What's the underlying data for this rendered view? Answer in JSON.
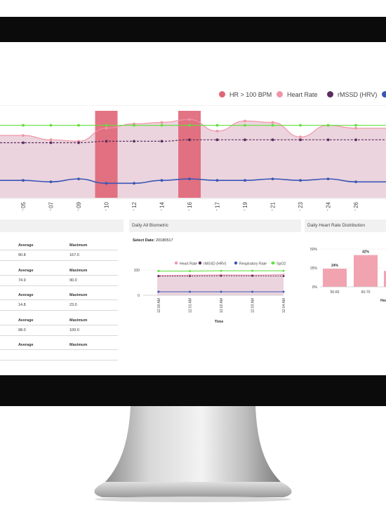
{
  "colors": {
    "hr_over_100": "#e06577",
    "heart_rate": "#f095a6",
    "rmssd": "#5a2d5e",
    "respiratory": "#3a56b5",
    "spo2": "#5fe03a",
    "area_fill": "#e8cdd8",
    "bezel": "#0b0b0b",
    "panel_header": "#f1f1f1"
  },
  "main_legend": [
    {
      "label": "HR > 100 BPM",
      "color": "#e06577"
    },
    {
      "label": "Heart Rate",
      "color": "#f095a6"
    },
    {
      "label": "rMSSD (HRV)",
      "color": "#5a2d5e"
    }
  ],
  "chart_data": [
    {
      "type": "line",
      "categories": [
        "May 05",
        "May 07",
        "May 09",
        "May 10",
        "May 12",
        "May 14",
        "May 16",
        "May 17",
        "May 19",
        "May 21",
        "May 23",
        "May 24",
        "May 26"
      ],
      "series": [
        {
          "name": "Heart Rate",
          "values": [
            83,
            80,
            79,
            88,
            91,
            92,
            94,
            86,
            93,
            92,
            82,
            90,
            88
          ]
        },
        {
          "name": "rMSSD (HRV)",
          "values": [
            78,
            78,
            78,
            79,
            79,
            79,
            80,
            80,
            80,
            80,
            80,
            80,
            80
          ]
        },
        {
          "name": "SpO2",
          "values": [
            90,
            90,
            90,
            90,
            90,
            90,
            90,
            90,
            90,
            90,
            90,
            90,
            90
          ]
        },
        {
          "name": "Respiratory Rate",
          "values": [
            52,
            51,
            53,
            50,
            50,
            52,
            53,
            52,
            52,
            53,
            52,
            53,
            51
          ]
        }
      ],
      "bars": [
        {
          "name": "HR > 100 BPM",
          "category": "May 10",
          "value": 100
        },
        {
          "name": "HR > 100 BPM",
          "category": "May 16",
          "value": 100
        }
      ],
      "ylim": [
        40,
        100
      ]
    },
    {
      "type": "line",
      "title": "Daily All Biometric",
      "categories": [
        "12:00 AM",
        "12:01 AM",
        "12:02 AM",
        "12:03 AM",
        "12:04 AM"
      ],
      "series": [
        {
          "name": "Heart Rate",
          "values": [
            78,
            80,
            81,
            80,
            82
          ]
        },
        {
          "name": "rMSSD (HRV)",
          "values": [
            76,
            76,
            77,
            77,
            76
          ]
        },
        {
          "name": "Respiratory Rate",
          "values": [
            14,
            14,
            14,
            14,
            14
          ]
        },
        {
          "name": "SpO2",
          "values": [
            96,
            96,
            97,
            97,
            97
          ]
        }
      ],
      "yticks": [
        "100",
        "0"
      ],
      "xlabel": "Time",
      "ylim": [
        0,
        100
      ]
    },
    {
      "type": "bar",
      "title": "Daily Heart Rate Distribution",
      "categories": [
        "50-60",
        "60-70",
        ""
      ],
      "values": [
        24,
        42,
        21
      ],
      "data_labels": [
        "24%",
        "42%",
        ""
      ],
      "yticks": [
        "50%",
        "25%",
        "0%"
      ],
      "xlabel": "Hea",
      "ylim": [
        0,
        50
      ]
    }
  ],
  "daily_biometric": {
    "title": "Daily All Biometric",
    "select_date_label": "Select Date:",
    "select_date_value": "20180517",
    "legend": [
      "Heart Rate",
      "rMSSD (HRV)",
      "Respiratory Rate",
      "SpO2"
    ]
  },
  "distribution": {
    "title": "Daily Heart Rate Distribution"
  },
  "stats_table": {
    "groups": [
      {
        "h1": "Average",
        "h2": "Maximum",
        "v1": "90.8",
        "v2": "167.0"
      },
      {
        "h1": "Average",
        "h2": "Maximum",
        "v1": "74.9",
        "v2": "90.0"
      },
      {
        "h1": "Average",
        "h2": "Maximum",
        "v1": "14.8",
        "v2": "23.0"
      },
      {
        "h1": "Average",
        "h2": "Maximum",
        "v1": "98.0",
        "v2": "100.0"
      },
      {
        "h1": "Average",
        "h2": "Maximum",
        "v1": "",
        "v2": ""
      }
    ]
  }
}
